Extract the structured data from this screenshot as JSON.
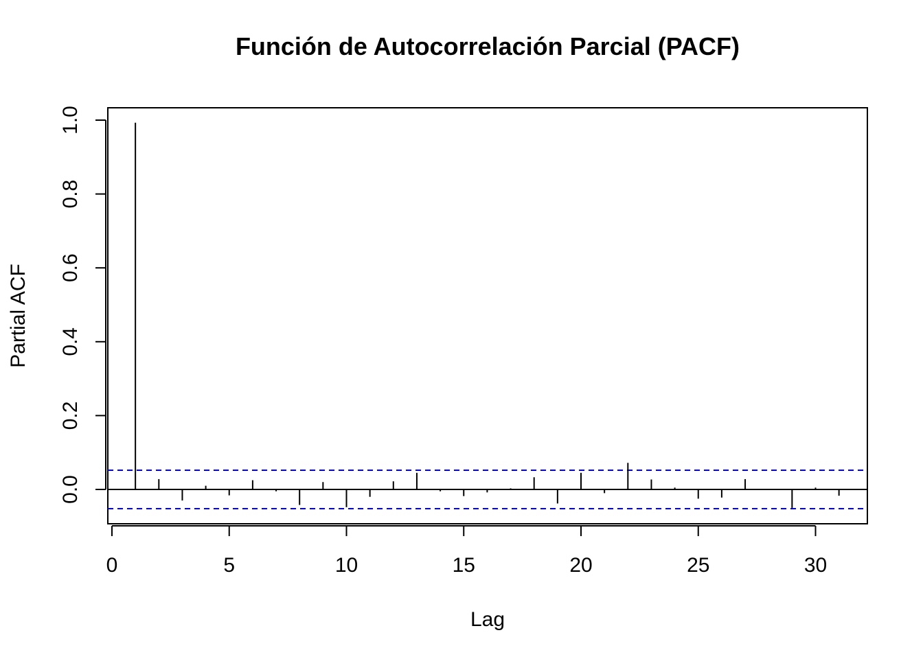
{
  "chart_data": {
    "type": "bar",
    "title": "Función de Autocorrelación Parcial (PACF)",
    "xlabel": "Lag",
    "ylabel": "Partial ACF",
    "xlim": [
      0,
      32
    ],
    "ylim": [
      -0.09,
      1.03
    ],
    "x_ticks": [
      "0",
      "5",
      "10",
      "15",
      "20",
      "25",
      "30"
    ],
    "y_ticks": [
      "0.0",
      "0.2",
      "0.4",
      "0.6",
      "0.8",
      "1.0"
    ],
    "lags": [
      1,
      2,
      3,
      4,
      5,
      6,
      7,
      8,
      9,
      10,
      11,
      12,
      13,
      14,
      15,
      16,
      17,
      18,
      19,
      20,
      21,
      22,
      23,
      24,
      25,
      26,
      27,
      28,
      29,
      30,
      31
    ],
    "values": [
      0.993,
      0.028,
      -0.03,
      0.01,
      -0.016,
      0.025,
      -0.005,
      -0.042,
      0.02,
      -0.048,
      -0.02,
      0.022,
      0.045,
      -0.005,
      -0.018,
      -0.008,
      0.003,
      0.033,
      -0.038,
      0.045,
      -0.01,
      0.072,
      0.027,
      0.005,
      -0.025,
      -0.022,
      0.028,
      0.0,
      -0.05,
      0.005,
      -0.017
    ],
    "confidence_limit": 0.052,
    "colors": {
      "bars": "#000000",
      "ci_lines": "#0000ff",
      "zero_line": "#000000"
    },
    "grid": false
  }
}
